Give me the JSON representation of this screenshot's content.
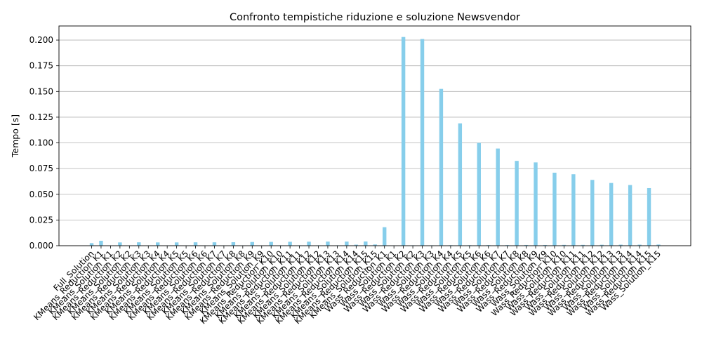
{
  "chart_data": {
    "type": "bar",
    "title": "Confronto tempistiche riduzione e soluzione Newsvendor",
    "xlabel": "",
    "ylabel": "Tempo [s]",
    "ylim": [
      0,
      0.2137
    ],
    "yticks": [
      "0.000",
      "0.025",
      "0.050",
      "0.075",
      "0.100",
      "0.125",
      "0.150",
      "0.175",
      "0.200"
    ],
    "grid": "y",
    "bar_color": "#87ceeb",
    "categories": [
      "Full_Solution",
      "KMeans_Reduction_K1",
      "KMeans_Solution_K1",
      "KMeans_Reduction_K2",
      "KMeans_Solution_K2",
      "KMeans_Reduction_K3",
      "KMeans_Solution_K3",
      "KMeans_Reduction_K4",
      "KMeans_Solution_K4",
      "KMeans_Reduction_K5",
      "KMeans_Solution_K5",
      "KMeans_Reduction_K6",
      "KMeans_Solution_K6",
      "KMeans_Reduction_K7",
      "KMeans_Solution_K7",
      "KMeans_Reduction_K8",
      "KMeans_Solution_K8",
      "KMeans_Reduction_K9",
      "KMeans_Solution_K9",
      "KMeans_Reduction_K10",
      "KMeans_Solution_K10",
      "KMeans_Reduction_K11",
      "KMeans_Solution_K11",
      "KMeans_Reduction_K12",
      "KMeans_Solution_K12",
      "KMeans_Reduction_K13",
      "KMeans_Solution_K13",
      "KMeans_Reduction_K14",
      "KMeans_Solution_K14",
      "KMeans_Reduction_K15",
      "KMeans_Solution_K15",
      "Wass_Reduction_K1",
      "Wass_Solution_K1",
      "Wass_Reduction_K2",
      "Wass_Solution_K2",
      "Wass_Reduction_K3",
      "Wass_Solution_K3",
      "Wass_Reduction_K4",
      "Wass_Solution_K4",
      "Wass_Reduction_K5",
      "Wass_Solution_K5",
      "Wass_Reduction_K6",
      "Wass_Solution_K6",
      "Wass_Reduction_K7",
      "Wass_Solution_K7",
      "Wass_Reduction_K8",
      "Wass_Solution_K8",
      "Wass_Reduction_K9",
      "Wass_Solution_K9",
      "Wass_Reduction_K10",
      "Wass_Solution_K10",
      "Wass_Reduction_K11",
      "Wass_Solution_K11",
      "Wass_Reduction_K12",
      "Wass_Solution_K12",
      "Wass_Reduction_K13",
      "Wass_Solution_K13",
      "Wass_Reduction_K14",
      "Wass_Solution_K14",
      "Wass_Reduction_K15",
      "Wass_Solution_K15"
    ],
    "values": [
      0.0025,
      0.0048,
      0.0003,
      0.0032,
      0.0003,
      0.0033,
      0.0003,
      0.0032,
      0.0003,
      0.0032,
      0.0003,
      0.0033,
      0.0003,
      0.0033,
      0.0003,
      0.0034,
      0.0003,
      0.0036,
      0.0003,
      0.0037,
      0.0004,
      0.0038,
      0.0004,
      0.0039,
      0.0004,
      0.004,
      0.0004,
      0.004,
      0.001,
      0.0041,
      0.0012,
      0.018,
      0.0003,
      0.203,
      0.0004,
      0.201,
      0.0004,
      0.1525,
      0.0005,
      0.119,
      0.0005,
      0.1,
      0.0006,
      0.0945,
      0.0006,
      0.0825,
      0.0007,
      0.081,
      0.0007,
      0.071,
      0.0008,
      0.0695,
      0.0008,
      0.064,
      0.0009,
      0.061,
      0.001,
      0.059,
      0.001,
      0.056,
      0.0011
    ]
  }
}
